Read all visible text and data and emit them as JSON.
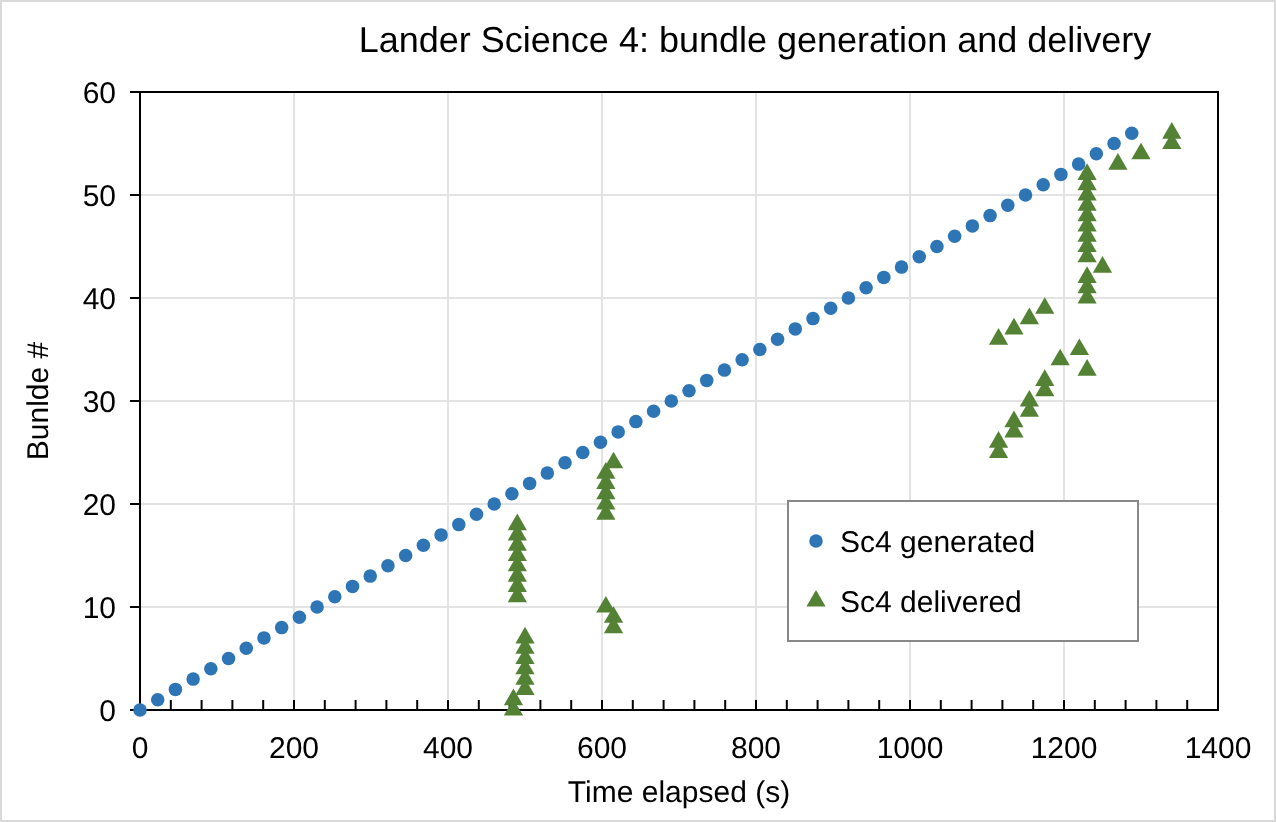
{
  "chart_data": {
    "type": "scatter",
    "title": "Lander Science 4: bundle generation and delivery",
    "xlabel": "Time elapsed (s)",
    "ylabel": "Bunlde #",
    "xlim": [
      0,
      1400
    ],
    "ylim": [
      0,
      60
    ],
    "xticks": [
      0,
      {
        "value": 40,
        "label": null
      },
      {
        "value": 80,
        "label": null
      },
      {
        "value": 120,
        "label": null
      },
      {
        "value": 160,
        "label": null
      },
      200,
      {
        "value": 240,
        "label": null
      },
      {
        "value": 280,
        "label": null
      },
      {
        "value": 320,
        "label": null
      },
      {
        "value": 360,
        "label": null
      },
      400,
      {
        "value": 440,
        "label": null
      },
      {
        "value": 480,
        "label": null
      },
      {
        "value": 520,
        "label": null
      },
      {
        "value": 560,
        "label": null
      },
      600,
      {
        "value": 640,
        "label": null
      },
      {
        "value": 680,
        "label": null
      },
      {
        "value": 720,
        "label": null
      },
      {
        "value": 760,
        "label": null
      },
      800,
      {
        "value": 840,
        "label": null
      },
      {
        "value": 880,
        "label": null
      },
      {
        "value": 920,
        "label": null
      },
      {
        "value": 960,
        "label": null
      },
      1000,
      {
        "value": 1040,
        "label": null
      },
      {
        "value": 1080,
        "label": null
      },
      {
        "value": 1120,
        "label": null
      },
      {
        "value": 1160,
        "label": null
      },
      1200,
      {
        "value": 1240,
        "label": null
      },
      {
        "value": 1280,
        "label": null
      },
      {
        "value": 1320,
        "label": null
      },
      {
        "value": 1360,
        "label": null
      },
      1400
    ],
    "yticks": [
      0,
      10,
      20,
      30,
      40,
      50,
      60
    ],
    "grid": true,
    "legend": "right",
    "series": [
      {
        "name": "Sc4 generated",
        "color": "#2e75b6",
        "marker": "circle",
        "x": [
          0,
          23,
          46,
          69,
          92,
          115,
          138,
          161,
          184,
          207,
          230,
          253,
          276,
          299,
          322,
          345,
          368,
          391,
          414,
          437,
          460,
          483,
          506,
          529,
          552,
          575,
          598,
          621,
          644,
          667,
          690,
          713,
          736,
          759,
          782,
          805,
          828,
          851,
          874,
          897,
          920,
          943,
          966,
          989,
          1012,
          1035,
          1058,
          1081,
          1104,
          1127,
          1150,
          1173,
          1196,
          1219,
          1242,
          1265,
          1288
        ],
        "values": [
          0,
          1,
          2,
          3,
          4,
          5,
          6,
          7,
          8,
          9,
          10,
          11,
          12,
          13,
          14,
          15,
          16,
          17,
          18,
          19,
          20,
          21,
          22,
          23,
          24,
          25,
          26,
          27,
          28,
          29,
          30,
          31,
          32,
          33,
          34,
          35,
          36,
          37,
          38,
          39,
          40,
          41,
          42,
          43,
          44,
          45,
          46,
          47,
          48,
          49,
          50,
          51,
          52,
          53,
          54,
          55,
          56
        ]
      },
      {
        "name": "Sc4 delivered",
        "color": "#548235",
        "marker": "triangle",
        "x": [
          485,
          485,
          500,
          500,
          500,
          500,
          500,
          500,
          615,
          615,
          605,
          490,
          490,
          490,
          490,
          490,
          490,
          490,
          490,
          605,
          605,
          605,
          605,
          605,
          615,
          1115,
          1115,
          1135,
          1135,
          1155,
          1155,
          1175,
          1175,
          1230,
          1195,
          1220,
          1115,
          1135,
          1155,
          1175,
          1230,
          1230,
          1230,
          1250,
          1230,
          1230,
          1230,
          1230,
          1230,
          1230,
          1230,
          1230,
          1230,
          1270,
          1300,
          1340,
          1340
        ],
        "values": [
          0,
          1,
          2,
          3,
          4,
          5,
          6,
          7,
          8,
          9,
          10,
          11,
          12,
          13,
          14,
          15,
          16,
          17,
          18,
          19,
          20,
          21,
          22,
          23,
          24,
          25,
          26,
          27,
          28,
          29,
          30,
          31,
          32,
          33,
          34,
          35,
          36,
          37,
          38,
          39,
          40,
          41,
          42,
          43,
          44,
          45,
          46,
          47,
          48,
          49,
          50,
          51,
          52,
          53,
          54,
          55,
          56
        ]
      }
    ]
  }
}
